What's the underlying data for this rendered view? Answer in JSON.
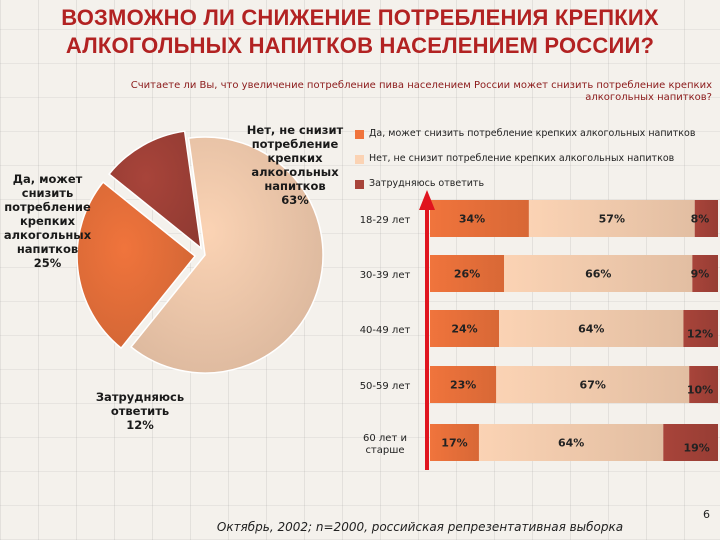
{
  "title_line1": "ВОЗМОЖНО ЛИ СНИЖЕНИЕ ПОТРЕБЛЕНИЯ КРЕПКИХ",
  "title_line2": "АЛКОГОЛЬНЫХ НАПИТКОВ НАСЕЛЕНИЕМ РОССИИ?",
  "question_line1": "Считаете ли Вы, что увеличение потребление пива населением России может снизить потребление крепких",
  "question_line2": "алкогольных напитков?",
  "footer": "Октябрь, 2002; n=2000, российская репрезентативная выборка",
  "page_number": "6",
  "colors": {
    "title": "#b22222",
    "yes": "#f0743c",
    "no": "#fbd3b4",
    "hard": "#a8443a",
    "arrow": "#e0141e"
  },
  "chart_data": [
    {
      "type": "pie",
      "slices": [
        {
          "label_lines": [
            "Нет, не снизит",
            "потребление",
            "крепких",
            "алкогольных",
            "напитков",
            "63%"
          ],
          "value": 63,
          "color": "#fbd3b4"
        },
        {
          "label_lines": [
            "Да, может",
            "снизить",
            "потребление",
            "крепких",
            "алкогольных",
            "напитков",
            "25%"
          ],
          "value": 25,
          "color": "#f0743c"
        },
        {
          "label_lines": [
            "Затрудняюсь",
            "ответить",
            "12%"
          ],
          "value": 12,
          "color": "#a8443a"
        }
      ]
    },
    {
      "type": "bar",
      "stacked": true,
      "orientation": "horizontal",
      "categories": [
        "18-29 лет",
        "30-39 лет",
        "40-49 лет",
        "50-59 лет",
        "60 лет и старше"
      ],
      "category_lines": [
        [
          "18-29 лет"
        ],
        [
          "30-39 лет"
        ],
        [
          "40-49 лет"
        ],
        [
          "50-59 лет"
        ],
        [
          "60 лет и",
          "старше"
        ]
      ],
      "series": [
        {
          "name": "Да, может снизить потребление крепких алкогольных напитков",
          "values": [
            34,
            26,
            24,
            23,
            17
          ],
          "labels": [
            "34%",
            "26%",
            "24%",
            "23%",
            "17%"
          ],
          "color": "#f0743c"
        },
        {
          "name": "Нет, не снизит потребление крепких алкогольных напитков",
          "values": [
            57,
            66,
            64,
            67,
            64
          ],
          "labels": [
            "57%",
            "66%",
            "64%",
            "67%",
            "64%"
          ],
          "color": "#fbd3b4"
        },
        {
          "name": "Затрудняюсь ответить",
          "values": [
            8,
            9,
            12,
            10,
            19
          ],
          "labels": [
            "8%",
            "9%",
            "12%",
            "10%",
            "19%"
          ],
          "color": "#a8443a"
        }
      ],
      "legend_position": "top"
    }
  ]
}
